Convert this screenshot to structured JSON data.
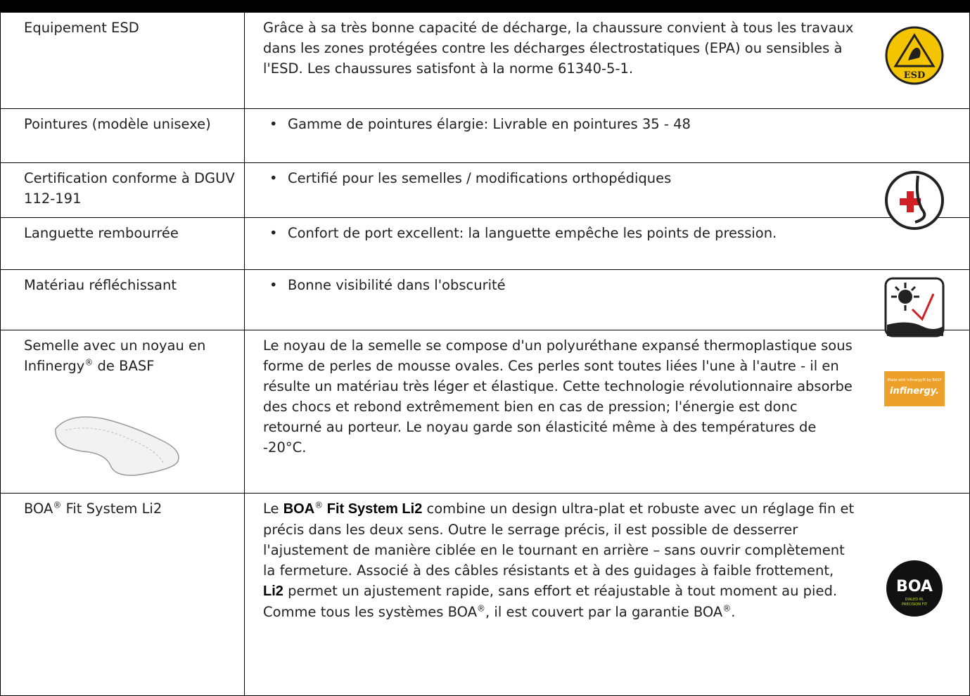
{
  "table": {
    "rows": [
      {
        "label": [
          {
            "text": "Equipement ESD"
          }
        ],
        "bullet": false,
        "description": [
          {
            "text": "Grâce à sa très bonne capacité de décharge, la chaussure convient à tous les travaux dans les zones protégées contre les décharges électrostatiques (EPA) ou sensibles à l'ESD. Les chaussures satisfont à la norme 61340-5-1."
          }
        ],
        "icon": "esd",
        "icon_text": [
          "ESD"
        ]
      },
      {
        "label": [
          {
            "text": "Pointures (modèle unisexe)"
          }
        ],
        "bullet": true,
        "description": [
          {
            "text": "Gamme de pointures élargie: Livrable en pointures 35 - 48"
          }
        ],
        "icon": "none",
        "icon_text": []
      },
      {
        "label": [
          {
            "text": "Certification conforme à DGUV 112-191"
          }
        ],
        "bullet": true,
        "description": [
          {
            "text": "Certifié pour les semelles / modifications orthopédiques"
          }
        ],
        "icon": "ortho",
        "icon_text": []
      },
      {
        "label": [
          {
            "text": "Languette rembourrée"
          }
        ],
        "bullet": true,
        "description": [
          {
            "text": "Confort de port excellent: la languette empêche les points de pression."
          }
        ],
        "icon": "none",
        "icon_text": []
      },
      {
        "label": [
          {
            "text": "Matériau réfléchissant"
          }
        ],
        "bullet": true,
        "description": [
          {
            "text": "Bonne visibilité dans l'obscurité"
          }
        ],
        "icon": "reflect",
        "icon_text": []
      },
      {
        "label": [
          {
            "text": "Semelle avec un noyau en Infinergy"
          },
          {
            "text": "®",
            "sup": true
          },
          {
            "text": " de BASF"
          }
        ],
        "bullet": false,
        "description": [
          {
            "text": "Le noyau de la semelle se compose d'un polyuréthane expansé thermoplastique sous forme de perles de mousse ovales. Ces perles sont toutes liées l'une à l'autre - il en résulte un matériau très léger et élastique. Cette technologie révolutionnaire absorbe des chocs et rebond extrêmement bien en cas de pression; l'énergie est donc retourné au porteur. Le noyau garde son élasticité même à des températures de -20°C."
          }
        ],
        "icon": "infinergy",
        "icon_text": [
          "Made with infinergy® by BASF",
          "infinergy."
        ]
      },
      {
        "label": [
          {
            "text": "BOA"
          },
          {
            "text": "®",
            "sup": true
          },
          {
            "text": " Fit System Li2"
          }
        ],
        "bullet": false,
        "description": [
          {
            "text": "Le "
          },
          {
            "text": "BOA",
            "bold": true
          },
          {
            "text": "®",
            "sup": true
          },
          {
            "text": " Fit System Li2",
            "bold": true
          },
          {
            "text": " combine un design ultra-plat et robuste avec un réglage fin et précis dans les deux sens. Outre le serrage précis, il est possible de desserrer l'ajustement de manière ciblée en le tournant en arrière – sans ouvrir complètement la fermeture. Associé à des câbles résistants et à des guidages à faible frottement, "
          },
          {
            "text": "Li2",
            "bold": true
          },
          {
            "text": " permet un ajustement rapide, sans effort et réajustable à tout moment au pied. Comme tous les systèmes BOA"
          },
          {
            "text": "®",
            "sup": true
          },
          {
            "text": ", il est couvert par la garantie BOA"
          },
          {
            "text": "®",
            "sup": true
          },
          {
            "text": "."
          }
        ],
        "icon": "boa",
        "icon_text": [
          "BOA",
          "DIALED IN.",
          "PRECISION FIT"
        ]
      }
    ]
  }
}
